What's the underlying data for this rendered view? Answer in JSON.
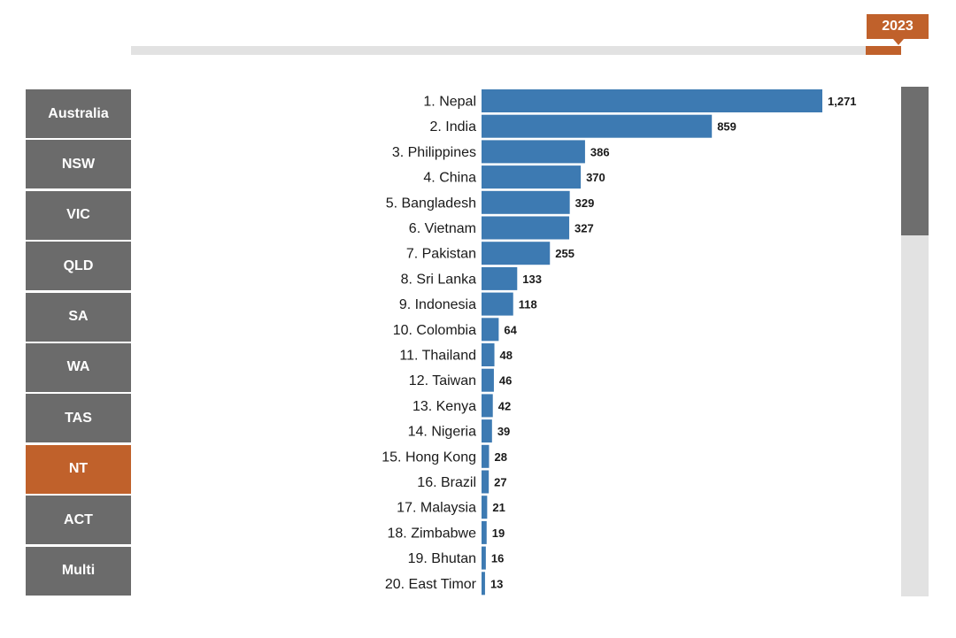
{
  "timeline": {
    "selected_year": "2023",
    "progress": 1.0
  },
  "colors": {
    "accent": "#c0612b",
    "bar": "#3d7ab2",
    "button": "#6b6b6b"
  },
  "regions": {
    "items": [
      {
        "label": "Australia",
        "active": false
      },
      {
        "label": "NSW",
        "active": false
      },
      {
        "label": "VIC",
        "active": false
      },
      {
        "label": "QLD",
        "active": false
      },
      {
        "label": "SA",
        "active": false
      },
      {
        "label": "WA",
        "active": false
      },
      {
        "label": "TAS",
        "active": false
      },
      {
        "label": "NT",
        "active": true
      },
      {
        "label": "ACT",
        "active": false
      },
      {
        "label": "Multi",
        "active": false
      }
    ]
  },
  "chart_data": {
    "type": "bar",
    "orientation": "horizontal",
    "categories": [
      "1. Nepal",
      "2. India",
      "3. Philippines",
      "4. China",
      "5. Bangladesh",
      "6. Vietnam",
      "7. Pakistan",
      "8. Sri Lanka",
      "9. Indonesia",
      "10. Colombia",
      "11. Thailand",
      "12. Taiwan",
      "13. Kenya",
      "14. Nigeria",
      "15. Hong Kong",
      "16. Brazil",
      "17. Malaysia",
      "18. Zimbabwe",
      "19. Bhutan",
      "20. East Timor"
    ],
    "values": [
      1271,
      859,
      386,
      370,
      329,
      327,
      255,
      133,
      118,
      64,
      48,
      46,
      42,
      39,
      28,
      27,
      21,
      19,
      16,
      13
    ],
    "value_labels": [
      "1,271",
      "859",
      "386",
      "370",
      "329",
      "327",
      "255",
      "133",
      "118",
      "64",
      "48",
      "46",
      "42",
      "39",
      "28",
      "27",
      "21",
      "19",
      "16",
      "13"
    ],
    "xlim": [
      0,
      1271
    ],
    "grid": false,
    "title": "",
    "xlabel": "",
    "ylabel": ""
  },
  "scrollbar": {
    "position": 0.0,
    "visible_fraction": 0.29
  }
}
